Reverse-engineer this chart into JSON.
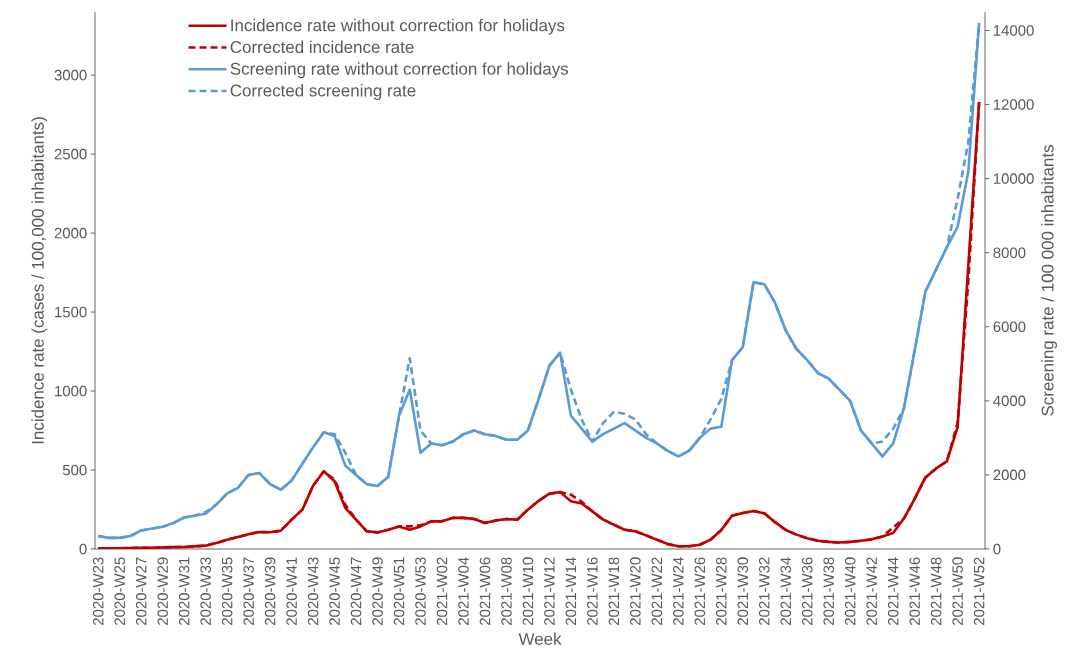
{
  "chart_data": {
    "type": "line",
    "xlabel": "Week",
    "ylabel": "Incidence rate (cases / 100,000 inhabitants)",
    "y2label": "Screening rate / 100 000 inhabitants",
    "categories": [
      "2020-W23",
      null,
      "2020-W25",
      null,
      "2020-W27",
      null,
      "2020-W29",
      null,
      "2020-W31",
      null,
      "2020-W33",
      null,
      "2020-W35",
      null,
      "2020-W37",
      null,
      "2020-W39",
      null,
      "2020-W41",
      null,
      "2020-W43",
      null,
      "2020-W45",
      null,
      "2020-W47",
      null,
      "2020-W49",
      null,
      "2020-W51",
      null,
      "2020-W53",
      null,
      "2021-W02",
      null,
      "2021-W04",
      null,
      "2021-W06",
      null,
      "2021-W08",
      null,
      "2021-W10",
      null,
      "2021-W12",
      null,
      "2021-W14",
      null,
      "2021-W16",
      null,
      "2021-W18",
      null,
      "2021-W20",
      null,
      "2021-W22",
      null,
      "2021-W24",
      null,
      "2021-W26",
      null,
      "2021-W28",
      null,
      "2021-W30",
      null,
      "2021-W32",
      null,
      "2021-W34",
      null,
      "2021-W36",
      null,
      "2021-W38",
      null,
      "2021-W40",
      null,
      "2021-W42",
      null,
      "2021-W44",
      null,
      "2021-W46",
      null,
      "2021-W48",
      null,
      "2021-W50",
      null,
      "2021-W52"
    ],
    "series": [
      {
        "name": "Incidence rate without correction for holidays",
        "color": "#c00000",
        "line_style": "solid",
        "values": [
          4,
          4,
          5,
          6,
          7,
          8,
          10,
          12,
          13,
          17,
          21,
          38,
          59,
          76,
          93,
          108,
          106,
          116,
          186,
          249,
          400,
          492,
          429,
          260,
          186,
          112,
          105,
          122,
          143,
          122,
          143,
          175,
          175,
          197,
          197,
          190,
          165,
          180,
          190,
          185,
          249,
          305,
          350,
          360,
          302,
          288,
          238,
          186,
          154,
          122,
          112,
          86,
          59,
          32,
          17,
          17,
          27,
          59,
          120,
          211,
          228,
          240,
          226,
          170,
          120,
          91,
          68,
          52,
          45,
          41,
          45,
          52,
          61,
          79,
          101,
          193,
          317,
          453,
          510,
          555,
          772,
          1800,
          2830
        ]
      },
      {
        "name": "Corrected incidence rate",
        "color": "#c00000",
        "line_style": "dashed",
        "values": [
          4,
          4,
          5,
          6,
          7,
          8,
          10,
          12,
          13,
          17,
          21,
          38,
          59,
          76,
          93,
          108,
          106,
          116,
          186,
          249,
          400,
          492,
          440,
          280,
          186,
          112,
          105,
          122,
          143,
          143,
          150,
          175,
          175,
          197,
          197,
          190,
          165,
          180,
          190,
          185,
          249,
          305,
          350,
          360,
          344,
          300,
          238,
          186,
          154,
          122,
          112,
          86,
          59,
          32,
          17,
          17,
          27,
          59,
          120,
          211,
          228,
          240,
          226,
          170,
          120,
          91,
          68,
          52,
          45,
          41,
          45,
          52,
          61,
          79,
          136,
          193,
          317,
          453,
          510,
          555,
          800,
          1700,
          2830
        ]
      },
      {
        "name": "Screening rate without correction for holidays",
        "color": "#5b9bd5",
        "line_style": "solid",
        "axis": "y2",
        "values": [
          350,
          300,
          300,
          350,
          500,
          550,
          600,
          700,
          850,
          900,
          950,
          1200,
          1500,
          1650,
          2000,
          2050,
          1750,
          1600,
          1850,
          2300,
          2750,
          3150,
          3050,
          2250,
          2000,
          1750,
          1700,
          1950,
          3600,
          4300,
          2600,
          2850,
          2800,
          2900,
          3100,
          3200,
          3100,
          3050,
          2950,
          2950,
          3200,
          4050,
          4950,
          5300,
          3600,
          3250,
          2900,
          3100,
          3250,
          3400,
          3200,
          3000,
          2850,
          2650,
          2500,
          2650,
          3000,
          3250,
          3300,
          5100,
          5450,
          7200,
          7150,
          6650,
          5900,
          5400,
          5100,
          4750,
          4600,
          4300,
          4000,
          3200,
          2850,
          2500,
          2850,
          3800,
          5350,
          6950,
          7550,
          8150,
          8700,
          10200,
          14200
        ]
      },
      {
        "name": "Corrected screening rate",
        "color": "#5b9bd5",
        "line_style": "dashed",
        "axis": "y2",
        "values": [
          350,
          300,
          300,
          350,
          500,
          550,
          600,
          700,
          850,
          900,
          1000,
          1200,
          1500,
          1650,
          2000,
          2050,
          1750,
          1600,
          1850,
          2300,
          2750,
          3150,
          3100,
          2600,
          2000,
          1750,
          1700,
          1950,
          3600,
          5150,
          3200,
          2850,
          2800,
          2900,
          3100,
          3200,
          3100,
          3050,
          2950,
          2950,
          3200,
          4050,
          4950,
          5300,
          4300,
          3500,
          2900,
          3400,
          3700,
          3650,
          3500,
          3100,
          2850,
          2650,
          2500,
          2650,
          3000,
          3500,
          4050,
          5100,
          5450,
          7200,
          7150,
          6650,
          5900,
          5400,
          5100,
          4750,
          4600,
          4300,
          4000,
          3200,
          2850,
          2900,
          3250,
          3800,
          5350,
          6950,
          7550,
          8150,
          9450,
          11000,
          14200
        ]
      }
    ],
    "ylim": [
      0,
      3400
    ],
    "yticks": [
      0,
      500,
      1000,
      1500,
      2000,
      2500,
      3000
    ],
    "y2lim": [
      0,
      14500
    ],
    "y2ticks": [
      0,
      2000,
      4000,
      6000,
      8000,
      10000,
      12000,
      14000
    ],
    "legend": "top",
    "grid": false
  }
}
